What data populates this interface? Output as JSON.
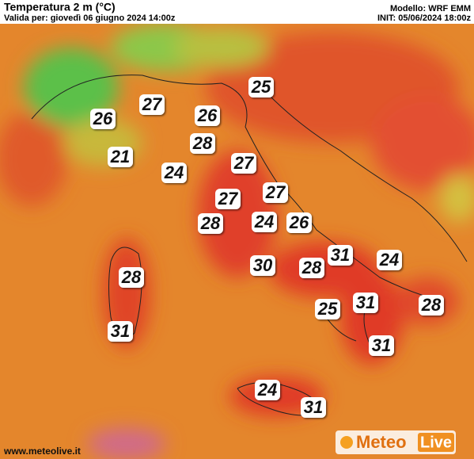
{
  "header": {
    "title": "Temperatura 2 m (°C)",
    "subtitle": "Valida per: giovedì 06 giugno 2024 14:00z",
    "model": "Modello: WRF EMM",
    "init": "INIT: 05/06/2024 18:00z"
  },
  "footer": {
    "website": "www.meteolive.it",
    "logo_left": "Meteo",
    "logo_right": "Live"
  },
  "map": {
    "labels": [
      25,
      27,
      26,
      26,
      28,
      21,
      27,
      24,
      27,
      27,
      24,
      26,
      28,
      31,
      24,
      30,
      28,
      28,
      31,
      25,
      28,
      31,
      31,
      24,
      31
    ]
  }
}
